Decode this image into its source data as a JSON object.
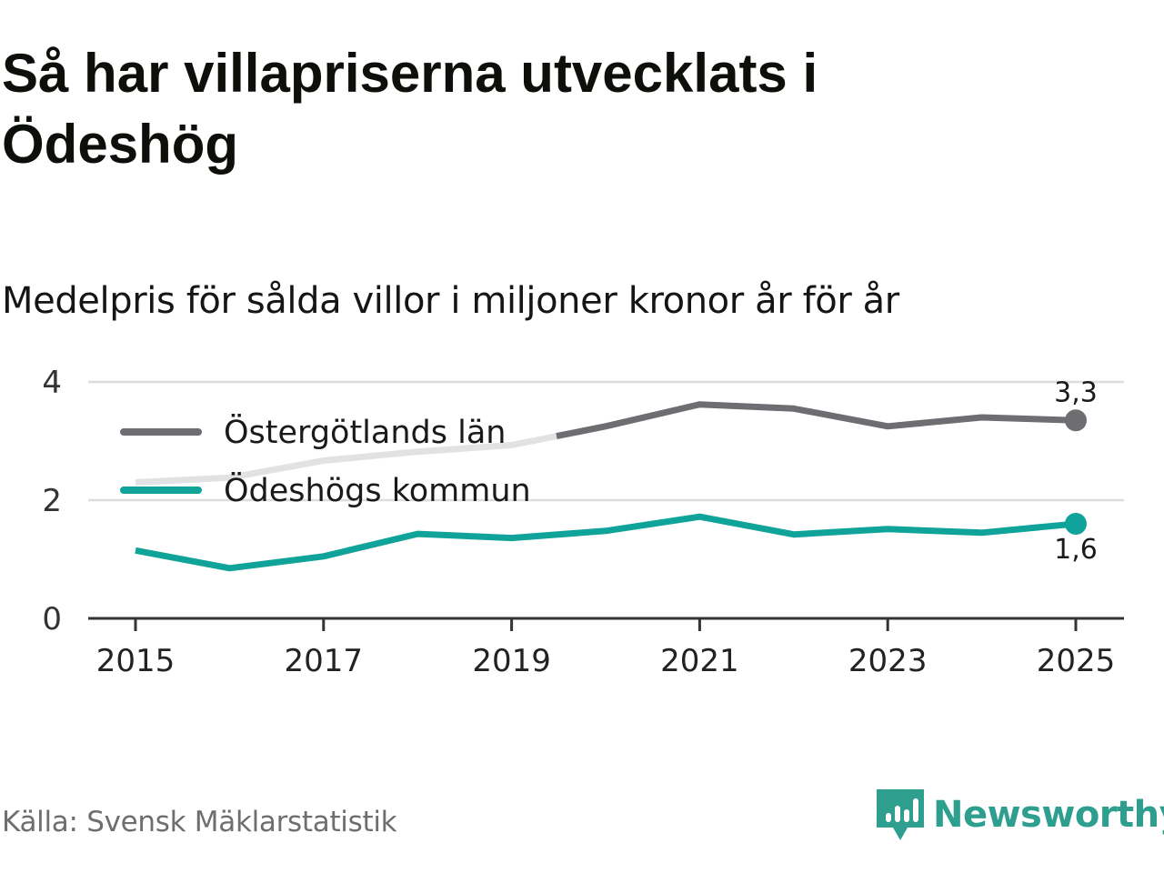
{
  "title": "Så har villapriserna utvecklats i Ödeshög",
  "subtitle": "Medelpris för sålda villor i miljoner kronor år för år",
  "source": "Källa: Svensk Mäklarstatistik",
  "brand": {
    "name": "Newsworthy",
    "icon": "newsworthy-logo-icon"
  },
  "colors": {
    "county": "#6d6d72",
    "county_faded": "#e2e2e2",
    "municipality": "#0fa39a",
    "grid": "#dddddd",
    "axis": "#333333",
    "brand": "#2e9e8f"
  },
  "chart_data": {
    "type": "line",
    "title": "Så har villapriserna utvecklats i Ödeshög",
    "xlabel": "",
    "ylabel": "Medelpris för sålda villor i miljoner kronor",
    "x": [
      2015,
      2016,
      2017,
      2018,
      2019,
      2020,
      2021,
      2022,
      2023,
      2024,
      2025
    ],
    "xticks": [
      "2015",
      "2017",
      "2019",
      "2021",
      "2023",
      "2025"
    ],
    "yticks": [
      "0",
      "2",
      "4"
    ],
    "ylim": [
      0,
      4
    ],
    "grid": true,
    "legend_position": "top-left",
    "series": [
      {
        "name": "Östergötlands län",
        "key": "county",
        "values": [
          2.3,
          2.38,
          2.67,
          2.82,
          2.93,
          3.25,
          3.62,
          3.55,
          3.25,
          3.4,
          3.35
        ],
        "end_label": "3,3"
      },
      {
        "name": "Ödeshögs kommun",
        "key": "municipality",
        "values": [
          1.15,
          0.85,
          1.05,
          1.43,
          1.36,
          1.48,
          1.72,
          1.42,
          1.51,
          1.45,
          1.6
        ],
        "end_label": "1,6"
      }
    ]
  }
}
